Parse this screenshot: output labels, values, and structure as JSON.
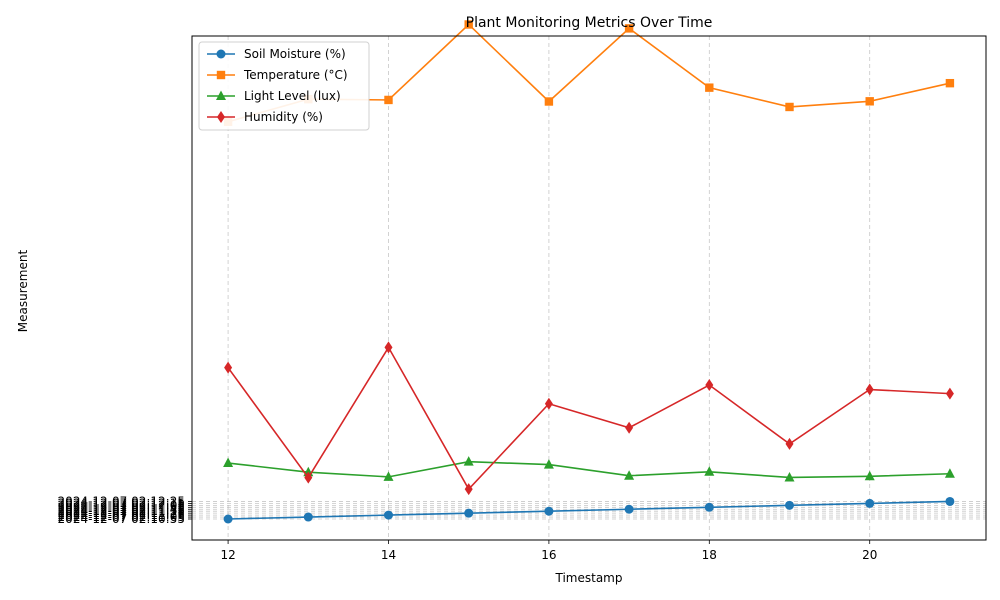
{
  "chart_data": {
    "type": "line",
    "title": "Plant Monitoring Metrics Over Time",
    "xlabel": "Timestamp",
    "ylabel": "Measurement",
    "grid": true,
    "legend_position": "top-left",
    "x": [
      12,
      13,
      14,
      15,
      16,
      17,
      18,
      19,
      20,
      21
    ],
    "x_ticks": [
      12,
      14,
      16,
      18,
      20
    ],
    "xlim": [
      11.55,
      21.45
    ],
    "ylim": [
      -0.45,
      9.45
    ],
    "y_ticks": [
      0,
      1,
      2,
      3,
      4,
      5,
      6,
      7,
      8,
      9
    ],
    "y_tick_labels": [
      "2024-12-07 02:10:55",
      "2024-12-07 02:11:05",
      "2024-12-07 02:11:15",
      "2024-12-07 02:11:25",
      "2024-12-07 02:11:35",
      "2024-12-07 02:11:45",
      "2024-12-07 02:11:55",
      "2024-12-07 02:12:05",
      "2024-12-07 02:12:15",
      "2024-12-07 02:12:25"
    ],
    "series": [
      {
        "name": "Soil Moisture (%)",
        "color": "#1f77b4",
        "marker": "circle",
        "values": [
          0,
          1,
          2,
          3,
          4,
          5,
          6,
          7,
          8,
          9
        ]
      },
      {
        "name": "Temperature (°C)",
        "color": "#ff7f0e",
        "marker": "square",
        "values": [
          203.7,
          215.3,
          214.9,
          253.6,
          214.1,
          251.6,
          221.2,
          211.3,
          214.2,
          223.5
        ]
      },
      {
        "name": "Light Level (lux)",
        "color": "#2ca02c",
        "marker": "triangle",
        "values": [
          28.7,
          24.0,
          21.6,
          29.4,
          27.9,
          22.2,
          24.2,
          21.3,
          21.9,
          23.2
        ]
      },
      {
        "name": "Humidity (%)",
        "color": "#d62728",
        "marker": "diamond",
        "values": [
          77.6,
          21.2,
          88.0,
          15.3,
          59.1,
          46.8,
          68.7,
          38.5,
          66.4,
          64.3
        ]
      }
    ]
  }
}
